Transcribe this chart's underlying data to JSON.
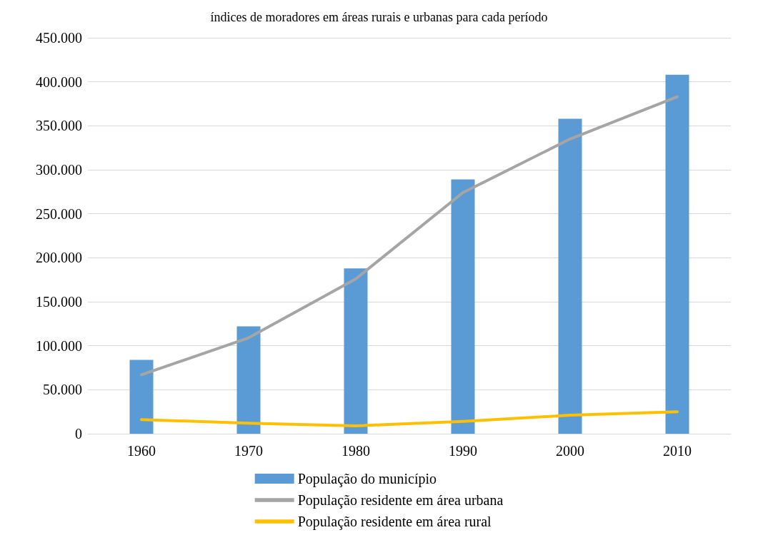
{
  "chart_data": {
    "type": "bar",
    "title": "índices de moradores em áreas rurais e urbanas para cada período",
    "categories": [
      "1960",
      "1970",
      "1980",
      "1990",
      "2000",
      "2010"
    ],
    "series": [
      {
        "name": "População do município",
        "color": "#5b9bd5",
        "values": [
          84000,
          122000,
          188000,
          289000,
          358000,
          408000
        ]
      },
      {
        "name": "População residente em área urbana",
        "type": "line",
        "color": "#a5a5a5",
        "values": [
          67000,
          109000,
          176000,
          274000,
          335000,
          383000
        ]
      },
      {
        "name": "População residente em área rural",
        "type": "line",
        "color": "#ffc000",
        "values": [
          16000,
          12000,
          9000,
          14000,
          21000,
          25000
        ]
      }
    ],
    "ylim": [
      0,
      450000
    ],
    "yticks": [
      {
        "value": 0,
        "label": "0"
      },
      {
        "value": 50000,
        "label": "50.000"
      },
      {
        "value": 100000,
        "label": "100.000"
      },
      {
        "value": 150000,
        "label": "150.000"
      },
      {
        "value": 200000,
        "label": "200.000"
      },
      {
        "value": 250000,
        "label": "250.000"
      },
      {
        "value": 300000,
        "label": "300.000"
      },
      {
        "value": 350000,
        "label": "350.000"
      },
      {
        "value": 400000,
        "label": "400.000"
      },
      {
        "value": 450000,
        "label": "450.000"
      }
    ],
    "grid": "y",
    "legend": "bottom",
    "marker": "none",
    "line_style": "solid"
  }
}
